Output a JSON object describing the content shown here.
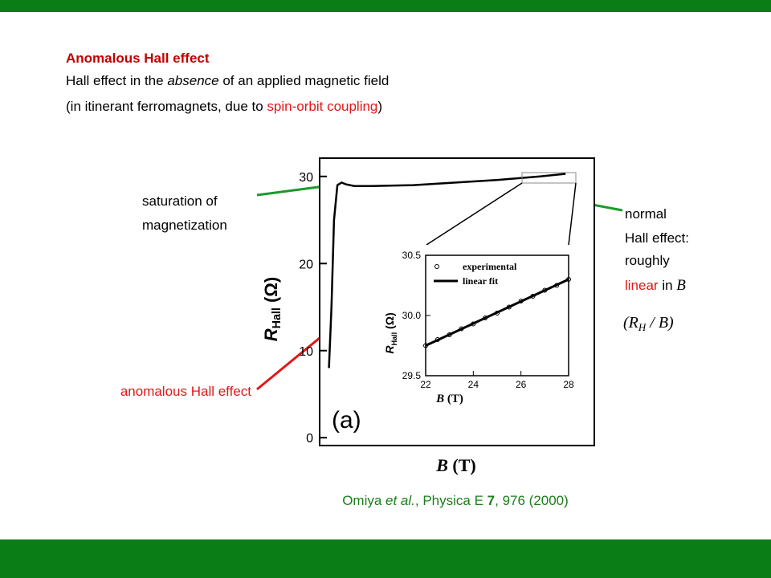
{
  "title": "Anomalous Hall effect",
  "line2": [
    "Hall effect in the ",
    "absence",
    " of an applied magnetic field"
  ],
  "line3": [
    "(in itinerant ferromagnets, due to ",
    "spin-orbit coupling",
    ")"
  ],
  "annotations": {
    "saturation": [
      "saturation of",
      "magnetization"
    ],
    "anomalous": "anomalous Hall effect",
    "normal": [
      "normal",
      "Hall effect:",
      "roughly"
    ],
    "linear": [
      "linear",
      " in ",
      "B"
    ],
    "ratio": [
      "(R",
      "H",
      " / B)"
    ]
  },
  "citation": [
    "Omiya ",
    "et al.",
    ", Physica E ",
    "7",
    ", 976 (2000)"
  ],
  "chart_data": [
    {
      "type": "line",
      "panel_label": "(a)",
      "xlabel": [
        "B",
        " (T)"
      ],
      "ylabel": [
        "R",
        "Hall",
        " (Ω)"
      ],
      "x": [
        0,
        0.3,
        0.6,
        1,
        1.5,
        2,
        3,
        5,
        10,
        15,
        20,
        25,
        28
      ],
      "values": [
        8,
        15,
        25,
        29,
        29.3,
        29.1,
        28.9,
        28.9,
        29.0,
        29.3,
        29.6,
        30.0,
        30.3
      ],
      "color": "#000000",
      "xlim": [
        -1.1,
        31.4
      ],
      "ylim": [
        -0.9,
        32.1
      ],
      "yticks": [
        0,
        10,
        20,
        30
      ]
    },
    {
      "type": "scatter",
      "xlabel": [
        "B",
        " (T)"
      ],
      "ylabel": [
        "R",
        "Hall",
        " (Ω)"
      ],
      "xlim": [
        22,
        28
      ],
      "ylim": [
        29.5,
        30.5
      ],
      "xticks": [
        22,
        24,
        26,
        28
      ],
      "yticks": [
        29.5,
        {
          "value": 30,
          "label": "30.0"
        },
        30.5
      ],
      "series": [
        {
          "name": "experimental",
          "mark": "circle",
          "color": "#000000",
          "x": [
            22,
            22.5,
            23,
            23.5,
            24,
            24.5,
            25,
            25.5,
            26,
            26.5,
            27,
            27.5,
            28
          ],
          "values": [
            29.75,
            29.8,
            29.84,
            29.89,
            29.93,
            29.98,
            30.02,
            30.07,
            30.12,
            30.16,
            30.21,
            30.25,
            30.3
          ]
        },
        {
          "name": "linear fit",
          "mark": "line",
          "color": "#000000",
          "x": [
            22,
            28
          ],
          "values": [
            29.75,
            30.3
          ]
        }
      ]
    }
  ]
}
